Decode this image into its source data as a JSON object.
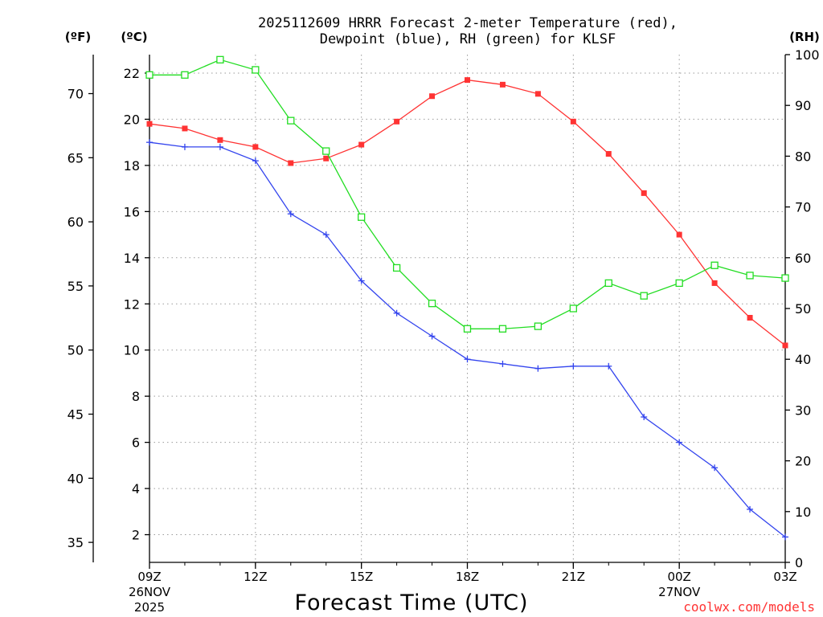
{
  "chart_data": {
    "type": "line",
    "title_line1": "2025112609 HRRR Forecast 2-meter Temperature (red),",
    "title_line2": "Dewpoint (blue), RH (green) for KLSF",
    "xlabel": "Forecast Time (UTC)",
    "x_count": 19,
    "x_ticks": [
      {
        "index": 0,
        "label": "09Z",
        "sub1": "26NOV",
        "sub2": "2025"
      },
      {
        "index": 3,
        "label": "12Z",
        "sub1": "",
        "sub2": ""
      },
      {
        "index": 6,
        "label": "15Z",
        "sub1": "",
        "sub2": ""
      },
      {
        "index": 9,
        "label": "18Z",
        "sub1": "",
        "sub2": ""
      },
      {
        "index": 12,
        "label": "21Z",
        "sub1": "",
        "sub2": ""
      },
      {
        "index": 15,
        "label": "00Z",
        "sub1": "27NOV",
        "sub2": ""
      },
      {
        "index": 18,
        "label": "03Z",
        "sub1": "",
        "sub2": ""
      }
    ],
    "celsius_axis": {
      "label": "(ºC)",
      "min": 0.8,
      "max": 22.8,
      "ticks": [
        2,
        4,
        6,
        8,
        10,
        12,
        14,
        16,
        18,
        20,
        22
      ]
    },
    "fahrenheit_axis": {
      "label": "(ºF)",
      "ticks": [
        35,
        40,
        45,
        50,
        55,
        60,
        65,
        70
      ]
    },
    "rh_axis": {
      "label": "(RH)",
      "min": 0,
      "max": 100,
      "ticks": [
        0,
        10,
        20,
        30,
        40,
        50,
        60,
        70,
        80,
        90,
        100
      ]
    },
    "series": [
      {
        "name": "Temperature",
        "color": "#ff3333",
        "marker": "filled-square",
        "axis": "C",
        "values": [
          19.8,
          19.6,
          19.1,
          18.8,
          18.1,
          18.3,
          18.9,
          19.9,
          21.0,
          21.7,
          21.5,
          21.1,
          19.9,
          18.5,
          16.8,
          15.0,
          12.9,
          11.4,
          10.2
        ]
      },
      {
        "name": "Dewpoint",
        "color": "#3344ee",
        "marker": "plus",
        "axis": "C",
        "values": [
          19.0,
          18.8,
          18.8,
          18.2,
          15.9,
          15.0,
          13.0,
          11.6,
          10.6,
          9.6,
          9.4,
          9.2,
          9.3,
          9.3,
          7.1,
          6.0,
          4.9,
          3.1,
          1.9
        ]
      },
      {
        "name": "RH",
        "color": "#22dd22",
        "marker": "open-square",
        "axis": "RH",
        "values": [
          96,
          96,
          99,
          97,
          87,
          81,
          68,
          58,
          51,
          46,
          46,
          46.5,
          50,
          55,
          52.5,
          55,
          58.5,
          56.5,
          56
        ]
      }
    ]
  },
  "footer": {
    "credit": "coolwx.com/models"
  },
  "colors": {
    "grid": "#9a9a9a",
    "axis": "#000000",
    "credit": "#ff3333"
  }
}
